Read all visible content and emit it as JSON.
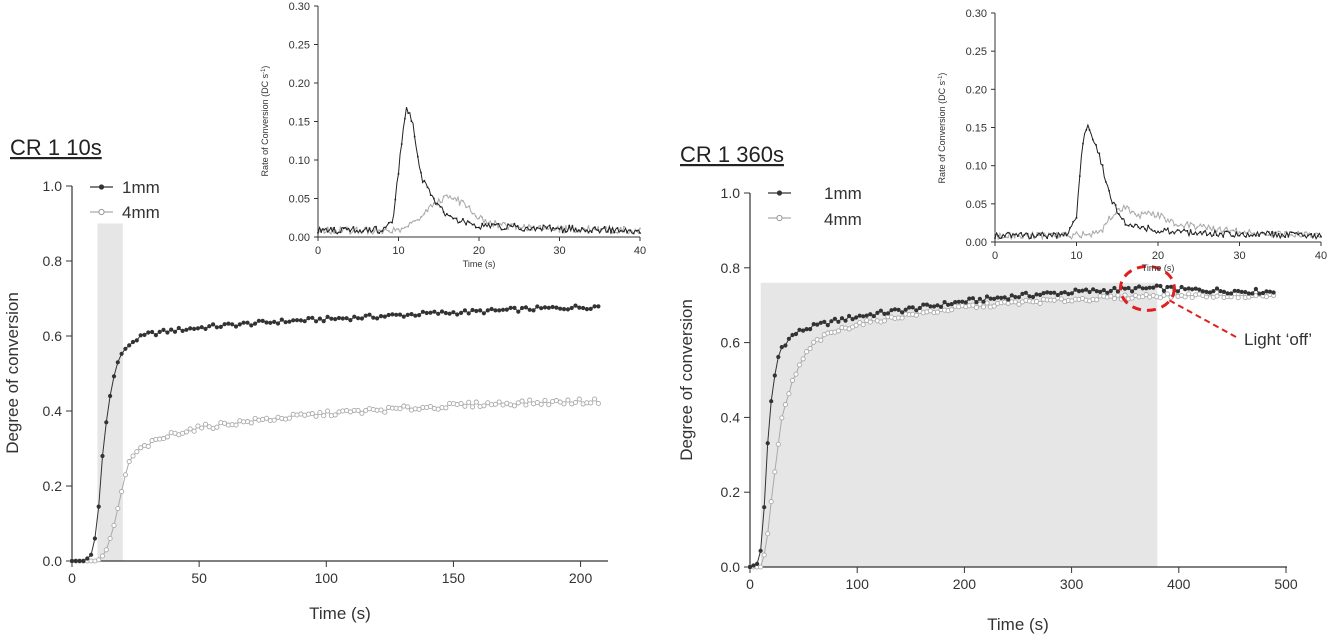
{
  "chart_data": [
    {
      "id": "left",
      "type": "scatter",
      "title": "CR 1 10s",
      "xlabel": "Time (s)",
      "ylabel": "Degree of conversion",
      "xlim": [
        0,
        210
      ],
      "ylim": [
        0,
        1.0
      ],
      "xticks": [
        "0",
        "50",
        "100",
        "150",
        "200"
      ],
      "yticks": [
        "0.0",
        "0.2",
        "0.4",
        "0.6",
        "0.8",
        "1.0"
      ],
      "light_window": [
        10,
        20
      ],
      "legend_position": "top-left",
      "series": [
        {
          "name": "1mm",
          "marker": "filled",
          "color": "#333333",
          "points": [
            [
              0,
              0.0
            ],
            [
              5,
              0.0
            ],
            [
              8,
              0.02
            ],
            [
              10,
              0.1
            ],
            [
              12,
              0.28
            ],
            [
              14,
              0.4
            ],
            [
              16,
              0.48
            ],
            [
              18,
              0.53
            ],
            [
              20,
              0.56
            ],
            [
              25,
              0.59
            ],
            [
              30,
              0.605
            ],
            [
              40,
              0.615
            ],
            [
              50,
              0.622
            ],
            [
              60,
              0.628
            ],
            [
              80,
              0.638
            ],
            [
              100,
              0.645
            ],
            [
              120,
              0.652
            ],
            [
              140,
              0.66
            ],
            [
              160,
              0.665
            ],
            [
              180,
              0.672
            ],
            [
              200,
              0.677
            ],
            [
              208,
              0.679
            ]
          ]
        },
        {
          "name": "4mm",
          "marker": "open",
          "color": "#aaaaaa",
          "points": [
            [
              0,
              0.0
            ],
            [
              10,
              0.0
            ],
            [
              13,
              0.02
            ],
            [
              16,
              0.08
            ],
            [
              18,
              0.14
            ],
            [
              20,
              0.2
            ],
            [
              22,
              0.26
            ],
            [
              25,
              0.29
            ],
            [
              30,
              0.31
            ],
            [
              40,
              0.34
            ],
            [
              50,
              0.355
            ],
            [
              60,
              0.365
            ],
            [
              80,
              0.38
            ],
            [
              100,
              0.393
            ],
            [
              120,
              0.402
            ],
            [
              140,
              0.41
            ],
            [
              160,
              0.418
            ],
            [
              180,
              0.422
            ],
            [
              200,
              0.425
            ],
            [
              208,
              0.427
            ]
          ]
        }
      ],
      "inset": {
        "type": "line",
        "xlabel": "Time (s)",
        "ylabel": "Rate of Conversion (DC s",
        "ylabel_sup": "-1",
        "ylabel_end": ")",
        "xlim": [
          0,
          40
        ],
        "ylim": [
          0,
          0.3
        ],
        "xticks": [
          "0",
          "10",
          "20",
          "30",
          "40"
        ],
        "yticks": [
          "0.00",
          "0.05",
          "0.10",
          "0.15",
          "0.20",
          "0.25",
          "0.30"
        ],
        "series": [
          {
            "name": "1mm",
            "color": "#222222",
            "points": [
              [
                0,
                0.004
              ],
              [
                5,
                0.004
              ],
              [
                8.5,
                0.005
              ],
              [
                9.3,
                0.02
              ],
              [
                10,
                0.08
              ],
              [
                10.5,
                0.13
              ],
              [
                11,
                0.16
              ],
              [
                11.5,
                0.155
              ],
              [
                12,
                0.13
              ],
              [
                12.5,
                0.09
              ],
              [
                13,
                0.07
              ],
              [
                14,
                0.05
              ],
              [
                15,
                0.035
              ],
              [
                16,
                0.025
              ],
              [
                17,
                0.02
              ],
              [
                18,
                0.015
              ],
              [
                20,
                0.01
              ],
              [
                25,
                0.008
              ],
              [
                30,
                0.006
              ],
              [
                35,
                0.005
              ],
              [
                40,
                0.004
              ]
            ]
          },
          {
            "name": "4mm",
            "color": "#aaaaaa",
            "points": [
              [
                0,
                0.004
              ],
              [
                10,
                0.004
              ],
              [
                11,
                0.008
              ],
              [
                12,
                0.015
              ],
              [
                13,
                0.025
              ],
              [
                14,
                0.035
              ],
              [
                15,
                0.042
              ],
              [
                16,
                0.048
              ],
              [
                17,
                0.045
              ],
              [
                18,
                0.04
              ],
              [
                19,
                0.03
              ],
              [
                20,
                0.02
              ],
              [
                22,
                0.012
              ],
              [
                25,
                0.008
              ],
              [
                30,
                0.006
              ],
              [
                40,
                0.004
              ]
            ]
          }
        ]
      }
    },
    {
      "id": "right",
      "type": "scatter",
      "title": "CR 1 360s",
      "xlabel": "Time (s)",
      "ylabel": "Degree of conversion",
      "xlim": [
        0,
        500
      ],
      "ylim": [
        0,
        1.0
      ],
      "xticks": [
        "0",
        "100",
        "200",
        "300",
        "400",
        "500"
      ],
      "yticks": [
        "0.0",
        "0.2",
        "0.4",
        "0.6",
        "0.8",
        "1.0"
      ],
      "light_window": [
        10,
        380
      ],
      "light_window_top": 0.76,
      "legend_position": "top-left",
      "annotation": {
        "text": "Light ‘off’",
        "x": 380,
        "y": 0.745
      },
      "series": [
        {
          "name": "1mm",
          "marker": "filled",
          "color": "#333333",
          "points": [
            [
              0,
              0.0
            ],
            [
              8,
              0.01
            ],
            [
              12,
              0.08
            ],
            [
              15,
              0.28
            ],
            [
              20,
              0.45
            ],
            [
              25,
              0.55
            ],
            [
              30,
              0.59
            ],
            [
              40,
              0.62
            ],
            [
              50,
              0.635
            ],
            [
              75,
              0.655
            ],
            [
              100,
              0.67
            ],
            [
              150,
              0.69
            ],
            [
              200,
              0.71
            ],
            [
              250,
              0.725
            ],
            [
              300,
              0.735
            ],
            [
              350,
              0.742
            ],
            [
              380,
              0.746
            ],
            [
              400,
              0.742
            ],
            [
              450,
              0.738
            ],
            [
              490,
              0.736
            ]
          ]
        },
        {
          "name": "4mm",
          "marker": "open",
          "color": "#aaaaaa",
          "points": [
            [
              0,
              0.0
            ],
            [
              10,
              0.0
            ],
            [
              15,
              0.05
            ],
            [
              20,
              0.18
            ],
            [
              25,
              0.3
            ],
            [
              30,
              0.4
            ],
            [
              40,
              0.5
            ],
            [
              50,
              0.56
            ],
            [
              60,
              0.6
            ],
            [
              75,
              0.625
            ],
            [
              100,
              0.65
            ],
            [
              150,
              0.675
            ],
            [
              200,
              0.695
            ],
            [
              250,
              0.707
            ],
            [
              300,
              0.715
            ],
            [
              350,
              0.722
            ],
            [
              380,
              0.726
            ],
            [
              400,
              0.726
            ],
            [
              450,
              0.726
            ],
            [
              490,
              0.725
            ]
          ]
        }
      ],
      "inset": {
        "type": "line",
        "xlabel": "Time (s)",
        "ylabel": "Rate of Conversion (DC s",
        "ylabel_sup": "-1",
        "ylabel_end": ")",
        "xlim": [
          0,
          40
        ],
        "ylim": [
          0,
          0.3
        ],
        "xticks": [
          "0",
          "10",
          "20",
          "30",
          "40"
        ],
        "yticks": [
          "0.00",
          "0.05",
          "0.10",
          "0.15",
          "0.20",
          "0.25",
          "0.30"
        ],
        "series": [
          {
            "name": "1mm",
            "color": "#222222",
            "points": [
              [
                0,
                0.004
              ],
              [
                5,
                0.004
              ],
              [
                9,
                0.005
              ],
              [
                10,
                0.03
              ],
              [
                10.5,
                0.1
              ],
              [
                11,
                0.14
              ],
              [
                11.5,
                0.15
              ],
              [
                12,
                0.13
              ],
              [
                12.5,
                0.12
              ],
              [
                13,
                0.1
              ],
              [
                14,
                0.06
              ],
              [
                15,
                0.035
              ],
              [
                16,
                0.02
              ],
              [
                18,
                0.015
              ],
              [
                20,
                0.01
              ],
              [
                25,
                0.007
              ],
              [
                30,
                0.006
              ],
              [
                40,
                0.004
              ]
            ]
          },
          {
            "name": "4mm",
            "color": "#aaaaaa",
            "points": [
              [
                0,
                0.004
              ],
              [
                10,
                0.004
              ],
              [
                12,
                0.006
              ],
              [
                13,
                0.01
              ],
              [
                14,
                0.025
              ],
              [
                15,
                0.035
              ],
              [
                16,
                0.04
              ],
              [
                17,
                0.035
              ],
              [
                18,
                0.03
              ],
              [
                19,
                0.035
              ],
              [
                20,
                0.03
              ],
              [
                22,
                0.02
              ],
              [
                25,
                0.015
              ],
              [
                30,
                0.008
              ],
              [
                40,
                0.004
              ]
            ]
          }
        ]
      }
    }
  ]
}
